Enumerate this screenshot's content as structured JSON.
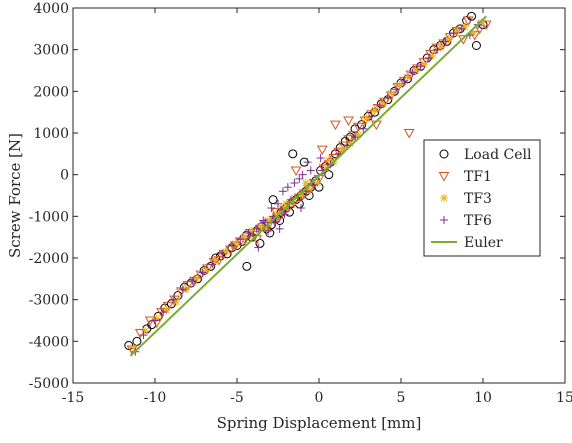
{
  "chart_data": {
    "type": "scatter",
    "title": "",
    "xlabel": "Spring Displacement [mm]",
    "ylabel": "Screw Force [N]",
    "xlim": [
      -15,
      15
    ],
    "ylim": [
      -5000,
      4000
    ],
    "xticks": [
      "-15",
      "-10",
      "-5",
      "0",
      "5",
      "10",
      "15"
    ],
    "yticks": [
      "-5000",
      "-4000",
      "-3000",
      "-2000",
      "-1000",
      "0",
      "1000",
      "2000",
      "3000",
      "4000"
    ],
    "grid": false,
    "legend_position": "right",
    "series": [
      {
        "name": "Load Cell",
        "marker": "circle",
        "color": "#000000",
        "x": [
          -11.6,
          -11.1,
          -10.5,
          -10.2,
          -9.8,
          -9.4,
          -9.0,
          -8.6,
          -8.2,
          -7.8,
          -7.4,
          -7.0,
          -6.6,
          -6.3,
          -6.0,
          -5.6,
          -5.3,
          -5.0,
          -4.7,
          -4.4,
          -4.1,
          -3.8,
          -3.5,
          -3.2,
          -2.9,
          -2.6,
          -2.3,
          -2.0,
          -1.7,
          -1.4,
          -1.1,
          -0.8,
          -0.5,
          -0.2,
          0.1,
          0.4,
          0.7,
          1.0,
          1.3,
          1.6,
          1.9,
          2.2,
          2.6,
          3.0,
          3.4,
          3.8,
          4.2,
          4.6,
          5.0,
          5.4,
          5.8,
          6.2,
          6.6,
          7.0,
          7.4,
          7.8,
          8.2,
          8.6,
          9.0,
          9.3,
          9.6,
          10.0,
          -3.6,
          -3.0,
          -2.4,
          -1.8,
          -1.2,
          -0.6,
          0.0,
          0.6,
          -4.4,
          -2.8,
          -1.6,
          -0.9
        ],
        "y": [
          -4100,
          -4000,
          -3700,
          -3600,
          -3400,
          -3200,
          -3100,
          -2900,
          -2700,
          -2600,
          -2500,
          -2300,
          -2200,
          -2000,
          -1950,
          -1900,
          -1750,
          -1700,
          -1600,
          -1450,
          -1500,
          -1350,
          -1250,
          -1300,
          -1200,
          -1050,
          -900,
          -800,
          -700,
          -600,
          -500,
          -400,
          -300,
          -150,
          100,
          200,
          300,
          500,
          650,
          800,
          900,
          1100,
          1200,
          1400,
          1500,
          1700,
          1800,
          2000,
          2200,
          2300,
          2500,
          2600,
          2800,
          3000,
          3100,
          3200,
          3400,
          3500,
          3700,
          3800,
          3100,
          3600,
          -1650,
          -1400,
          -1100,
          -900,
          -700,
          -500,
          -300,
          0,
          -2200,
          -600,
          500,
          300
        ]
      },
      {
        "name": "TF1",
        "marker": "triangle-down",
        "color": "#d95319",
        "x": [
          -11.4,
          -10.9,
          -10.3,
          -9.9,
          -9.6,
          -9.2,
          -8.8,
          -8.4,
          -8.0,
          -7.6,
          -7.2,
          -6.8,
          -6.4,
          -6.1,
          -5.8,
          -5.4,
          -5.1,
          -4.8,
          -4.5,
          -4.2,
          -3.9,
          -3.6,
          -3.3,
          -3.0,
          -2.7,
          -2.4,
          -2.1,
          -1.8,
          -1.5,
          -1.2,
          -0.9,
          -0.6,
          -0.3,
          0.0,
          0.3,
          0.6,
          0.9,
          1.2,
          1.5,
          1.8,
          2.1,
          2.4,
          2.8,
          3.2,
          3.6,
          4.0,
          4.4,
          4.8,
          5.2,
          5.6,
          6.0,
          6.4,
          6.8,
          7.2,
          7.6,
          8.0,
          8.4,
          8.8,
          9.1,
          9.5,
          9.8,
          10.2,
          -3.8,
          -2.6,
          -1.4,
          0.2,
          1.0,
          1.8,
          3.5,
          5.5
        ],
        "y": [
          -4200,
          -3800,
          -3500,
          -3550,
          -3300,
          -3150,
          -3000,
          -2800,
          -2650,
          -2550,
          -2400,
          -2250,
          -2100,
          -2050,
          -1900,
          -1800,
          -1700,
          -1600,
          -1550,
          -1400,
          -1450,
          -1300,
          -1200,
          -1150,
          -1100,
          -1000,
          -850,
          -750,
          -650,
          -550,
          -450,
          -350,
          -200,
          -100,
          150,
          250,
          400,
          550,
          700,
          850,
          950,
          1150,
          1300,
          1450,
          1600,
          1750,
          1900,
          2100,
          2250,
          2400,
          2550,
          2700,
          2900,
          3050,
          3150,
          3300,
          3450,
          3250,
          3700,
          3350,
          3500,
          3600,
          -1550,
          -900,
          100,
          600,
          1200,
          1300,
          1200,
          1000
        ]
      },
      {
        "name": "TF3",
        "marker": "asterisk",
        "color": "#edb120",
        "x": [
          -11.3,
          -10.6,
          -9.9,
          -9.3,
          -8.7,
          -8.1,
          -7.5,
          -6.9,
          -6.3,
          -5.7,
          -5.1,
          -4.6,
          -4.1,
          -3.6,
          -3.1,
          -2.6,
          -2.1,
          -1.6,
          -1.1,
          -0.6,
          -0.1,
          0.4,
          0.9,
          1.4,
          1.9,
          2.4,
          2.9,
          3.4,
          3.9,
          4.4,
          4.9,
          5.4,
          5.9,
          6.4,
          6.9,
          7.4,
          7.9,
          8.4,
          8.9,
          9.4,
          9.9,
          -3.2,
          -2.0,
          -0.8,
          0.6
        ],
        "y": [
          -4150,
          -3750,
          -3450,
          -3250,
          -3050,
          -2750,
          -2500,
          -2300,
          -2050,
          -1850,
          -1650,
          -1500,
          -1350,
          -1250,
          -1100,
          -950,
          -800,
          -650,
          -500,
          -350,
          -200,
          150,
          300,
          600,
          750,
          950,
          1350,
          1550,
          1700,
          1950,
          2150,
          2350,
          2500,
          2650,
          2850,
          3050,
          3250,
          3450,
          3550,
          3400,
          3650,
          -1300,
          -700,
          -200,
          350
        ]
      },
      {
        "name": "TF6",
        "marker": "plus",
        "color": "#7e2f8e",
        "x": [
          -11.2,
          -10.7,
          -10.0,
          -9.5,
          -8.9,
          -8.3,
          -7.7,
          -7.1,
          -6.5,
          -5.9,
          -5.3,
          -4.8,
          -4.3,
          -3.8,
          -3.3,
          -2.8,
          -2.3,
          -1.8,
          -1.3,
          -0.8,
          -0.3,
          0.2,
          0.7,
          1.2,
          1.7,
          2.2,
          2.7,
          3.2,
          3.7,
          4.2,
          4.7,
          5.2,
          5.7,
          6.2,
          6.7,
          7.2,
          7.7,
          8.2,
          8.7,
          9.2,
          9.7,
          -4.0,
          -3.4,
          -2.9,
          -2.5,
          -2.2,
          -1.9,
          -1.5,
          -1.0,
          -0.5,
          0.1,
          -3.7,
          -3.1,
          -2.7,
          -2.1,
          -1.7,
          -1.2,
          -0.7,
          -2.4,
          -1.1
        ],
        "y": [
          -4250,
          -3850,
          -3500,
          -3300,
          -3000,
          -2750,
          -2550,
          -2350,
          -2150,
          -1900,
          -1700,
          -1550,
          -1400,
          -1300,
          -1150,
          -1000,
          -850,
          -700,
          -550,
          -400,
          -250,
          100,
          250,
          500,
          700,
          900,
          1100,
          1400,
          1650,
          1850,
          2050,
          2250,
          2450,
          2600,
          2800,
          3000,
          3200,
          3400,
          3500,
          3350,
          3600,
          -1450,
          -1100,
          -800,
          -700,
          -400,
          -300,
          -200,
          0,
          100,
          400,
          -1750,
          -1350,
          -1150,
          -950,
          -600,
          -100,
          300,
          -1300,
          -800
        ]
      },
      {
        "name": "Euler",
        "marker": "line",
        "color": "#77ac30",
        "x": [
          -11.5,
          10.2
        ],
        "y": [
          -4350,
          3800
        ]
      }
    ]
  }
}
